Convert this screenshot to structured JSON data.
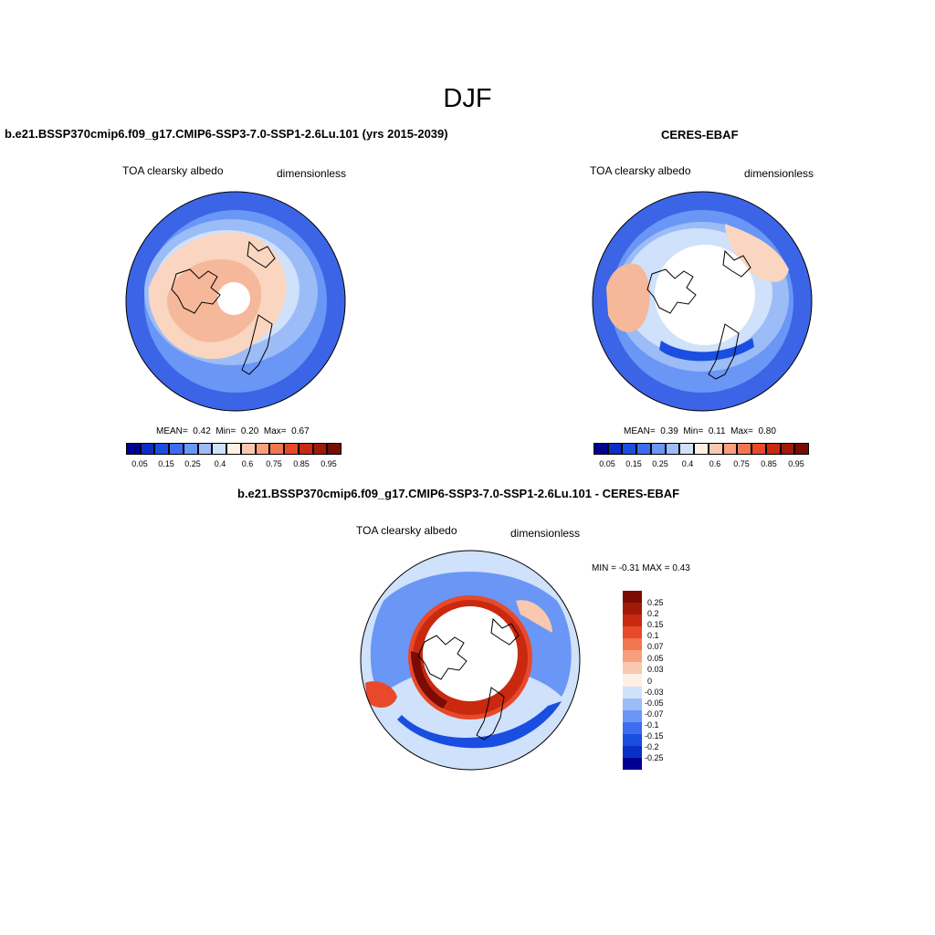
{
  "page_title": "DJF",
  "colors": {
    "land_outline": "#000000",
    "ocean_dark": "#3c64e6",
    "ocean_light": "#9cbcf7",
    "high_albedo": "#f6b89a",
    "void": "#ffffff"
  },
  "panels": [
    {
      "id": "model",
      "title": "b.e21.BSSP370cmip6.f09_g17.CMIP6-SSP3-7.0-SSP1-2.6Lu.101 (yrs 2015-2039)",
      "left_label": "TOA clearsky albedo",
      "right_label": "dimensionless",
      "stats": {
        "mean_label": "MEAN=",
        "mean": "0.42",
        "min_label": "Min=",
        "min": "0.20",
        "max_label": "Max=",
        "max": "0.67"
      },
      "colorbar_labels": [
        "0.05",
        "0.15",
        "0.25",
        "0.4",
        "0.6",
        "0.75",
        "0.85",
        "0.95"
      ]
    },
    {
      "id": "obs",
      "title": "CERES-EBAF",
      "left_label": "TOA clearsky albedo",
      "right_label": "dimensionless",
      "stats": {
        "mean_label": "MEAN=",
        "mean": "0.39",
        "min_label": "Min=",
        "min": "0.11",
        "max_label": "Max=",
        "max": "0.80"
      },
      "colorbar_labels": [
        "0.05",
        "0.15",
        "0.25",
        "0.4",
        "0.6",
        "0.75",
        "0.85",
        "0.95"
      ]
    },
    {
      "id": "diff",
      "title": "b.e21.BSSP370cmip6.f09_g17.CMIP6-SSP3-7.0-SSP1-2.6Lu.101 - CERES-EBAF",
      "left_label": "TOA clearsky albedo",
      "right_label": "dimensionless",
      "minmax": "MIN =  -0.31 MAX =   0.43",
      "colorbar_labels": [
        "0.25",
        "0.2",
        "0.15",
        "0.1",
        "0.07",
        "0.05",
        "0.03",
        "0",
        "-0.03",
        "-0.05",
        "-0.07",
        "-0.1",
        "-0.15",
        "-0.2",
        "-0.25"
      ]
    }
  ],
  "abs_palette": [
    "#000090",
    "#0a2fc6",
    "#1a4ee0",
    "#3c6cf0",
    "#6a96f5",
    "#9cbcf7",
    "#cfe1fb",
    "#fff0e6",
    "#f9c8ae",
    "#f6a07e",
    "#f2764f",
    "#e8492a",
    "#c8290f",
    "#a01a0a",
    "#7a0c04"
  ],
  "diff_palette": [
    "#7a0c04",
    "#a01a0a",
    "#c8290f",
    "#e8492a",
    "#f2764f",
    "#f6a07e",
    "#f9c8ae",
    "#fff0e6",
    "#cfe1fb",
    "#9cbcf7",
    "#6a96f5",
    "#3c6cf0",
    "#1a4ee0",
    "#0a2fc6",
    "#000090"
  ]
}
